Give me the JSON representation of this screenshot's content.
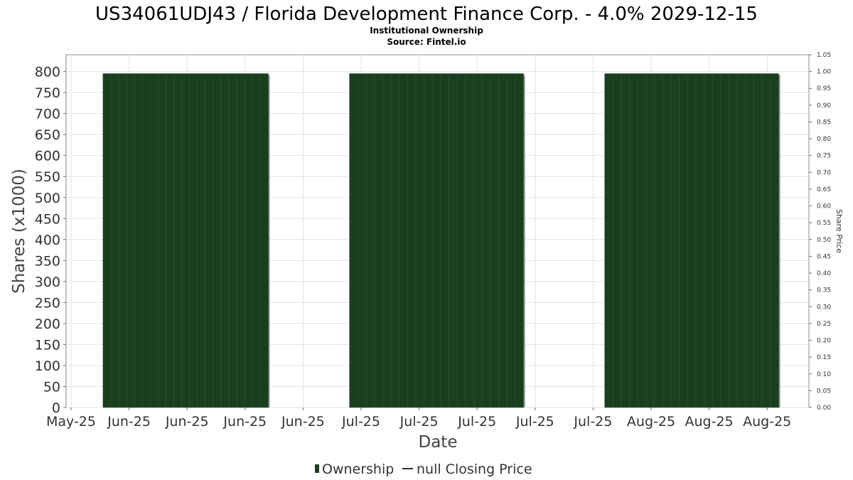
{
  "chart_data": {
    "type": "bar",
    "title": "US34061UDJ43 / Florida Development Finance Corp. - 4.0% 2029-12-15",
    "subtitle_lines": [
      "Institutional Ownership",
      "Source: Fintel.io"
    ],
    "xlabel": "Date",
    "ylabel": "Shares (x1000)",
    "y2label": "Share Price",
    "x_tick_labels": [
      "May-25",
      "Jun-25",
      "Jun-25",
      "Jun-25",
      "Jun-25",
      "Jul-25",
      "Jul-25",
      "Jul-25",
      "Jul-25",
      "Jul-25",
      "Aug-25",
      "Aug-25",
      "Aug-25"
    ],
    "ylim": [
      0,
      800
    ],
    "y_ticks": [
      0,
      50,
      100,
      150,
      200,
      250,
      300,
      350,
      400,
      450,
      500,
      550,
      600,
      650,
      700,
      750,
      800
    ],
    "y2lim": [
      0,
      1.05
    ],
    "y2_ticks": [
      "0.00",
      "0.05",
      "0.10",
      "0.15",
      "0.20",
      "0.25",
      "0.30",
      "0.35",
      "0.40",
      "0.45",
      "0.50",
      "0.55",
      "0.60",
      "0.65",
      "0.70",
      "0.75",
      "0.80",
      "0.85",
      "0.90",
      "0.95",
      "1.00",
      "1.05"
    ],
    "x_tick_positions": [
      0,
      1,
      2,
      3,
      4,
      5,
      6,
      7,
      8,
      9,
      10,
      11,
      12
    ],
    "x_domain": [
      0,
      12.5
    ],
    "series": [
      {
        "name": "Ownership",
        "color": "#193f1f",
        "blocks": [
          {
            "x_start": 0.55,
            "x_end": 3.4,
            "value": 795,
            "sub_bars": 21
          },
          {
            "x_start": 4.8,
            "x_end": 7.8,
            "value": 795,
            "sub_bars": 21
          },
          {
            "x_start": 9.2,
            "x_end": 12.2,
            "value": 795,
            "sub_bars": 21
          }
        ]
      },
      {
        "name": "null Closing Price",
        "color": "#333333",
        "values": []
      }
    ],
    "legend": {
      "position": "bottom",
      "items": [
        {
          "label": "Ownership",
          "symbol": "bar",
          "color": "#193f1f"
        },
        {
          "label": "null Closing Price",
          "symbol": "line",
          "color": "#333333"
        }
      ]
    },
    "grid": true
  }
}
